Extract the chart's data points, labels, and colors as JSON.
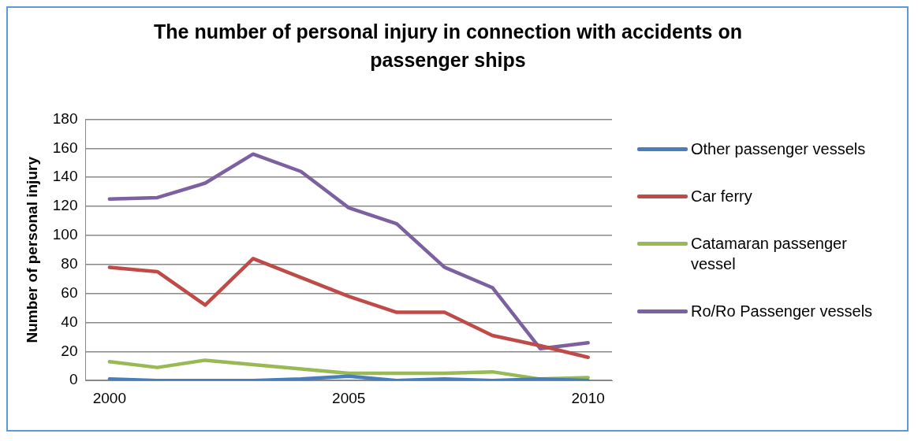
{
  "chart_data": {
    "type": "line",
    "title": "The number of personal injury in connection with accidents on passenger ships",
    "ylabel": "Number of personal injury",
    "x": [
      2000,
      2001,
      2002,
      2003,
      2004,
      2005,
      2006,
      2007,
      2008,
      2009,
      2010
    ],
    "xlim": [
      1999.5,
      2010.5
    ],
    "xticks": [
      2000,
      2005,
      2010
    ],
    "ylim": [
      0,
      180
    ],
    "yticks": [
      0,
      20,
      40,
      60,
      80,
      100,
      120,
      140,
      160,
      180
    ],
    "grid": "y",
    "legend": "right",
    "marker": "none",
    "line_style": "solid",
    "series": [
      {
        "name": "Other passenger vessels",
        "color": "#4a7ebb",
        "values": [
          1,
          0,
          0,
          0,
          1,
          3,
          0,
          1,
          0,
          1,
          0
        ]
      },
      {
        "name": "Car ferry",
        "color": "#be4b48",
        "values": [
          78,
          75,
          52,
          84,
          71,
          58,
          47,
          47,
          31,
          24,
          16
        ]
      },
      {
        "name": "Catamaran passenger vessel",
        "color": "#98b954",
        "values": [
          13,
          9,
          14,
          11,
          8,
          5,
          5,
          5,
          6,
          1,
          2
        ]
      },
      {
        "name": "Ro/Ro Passenger vessels",
        "color": "#7d60a0",
        "values": [
          125,
          126,
          136,
          156,
          144,
          119,
          108,
          78,
          64,
          22,
          26
        ]
      }
    ]
  }
}
